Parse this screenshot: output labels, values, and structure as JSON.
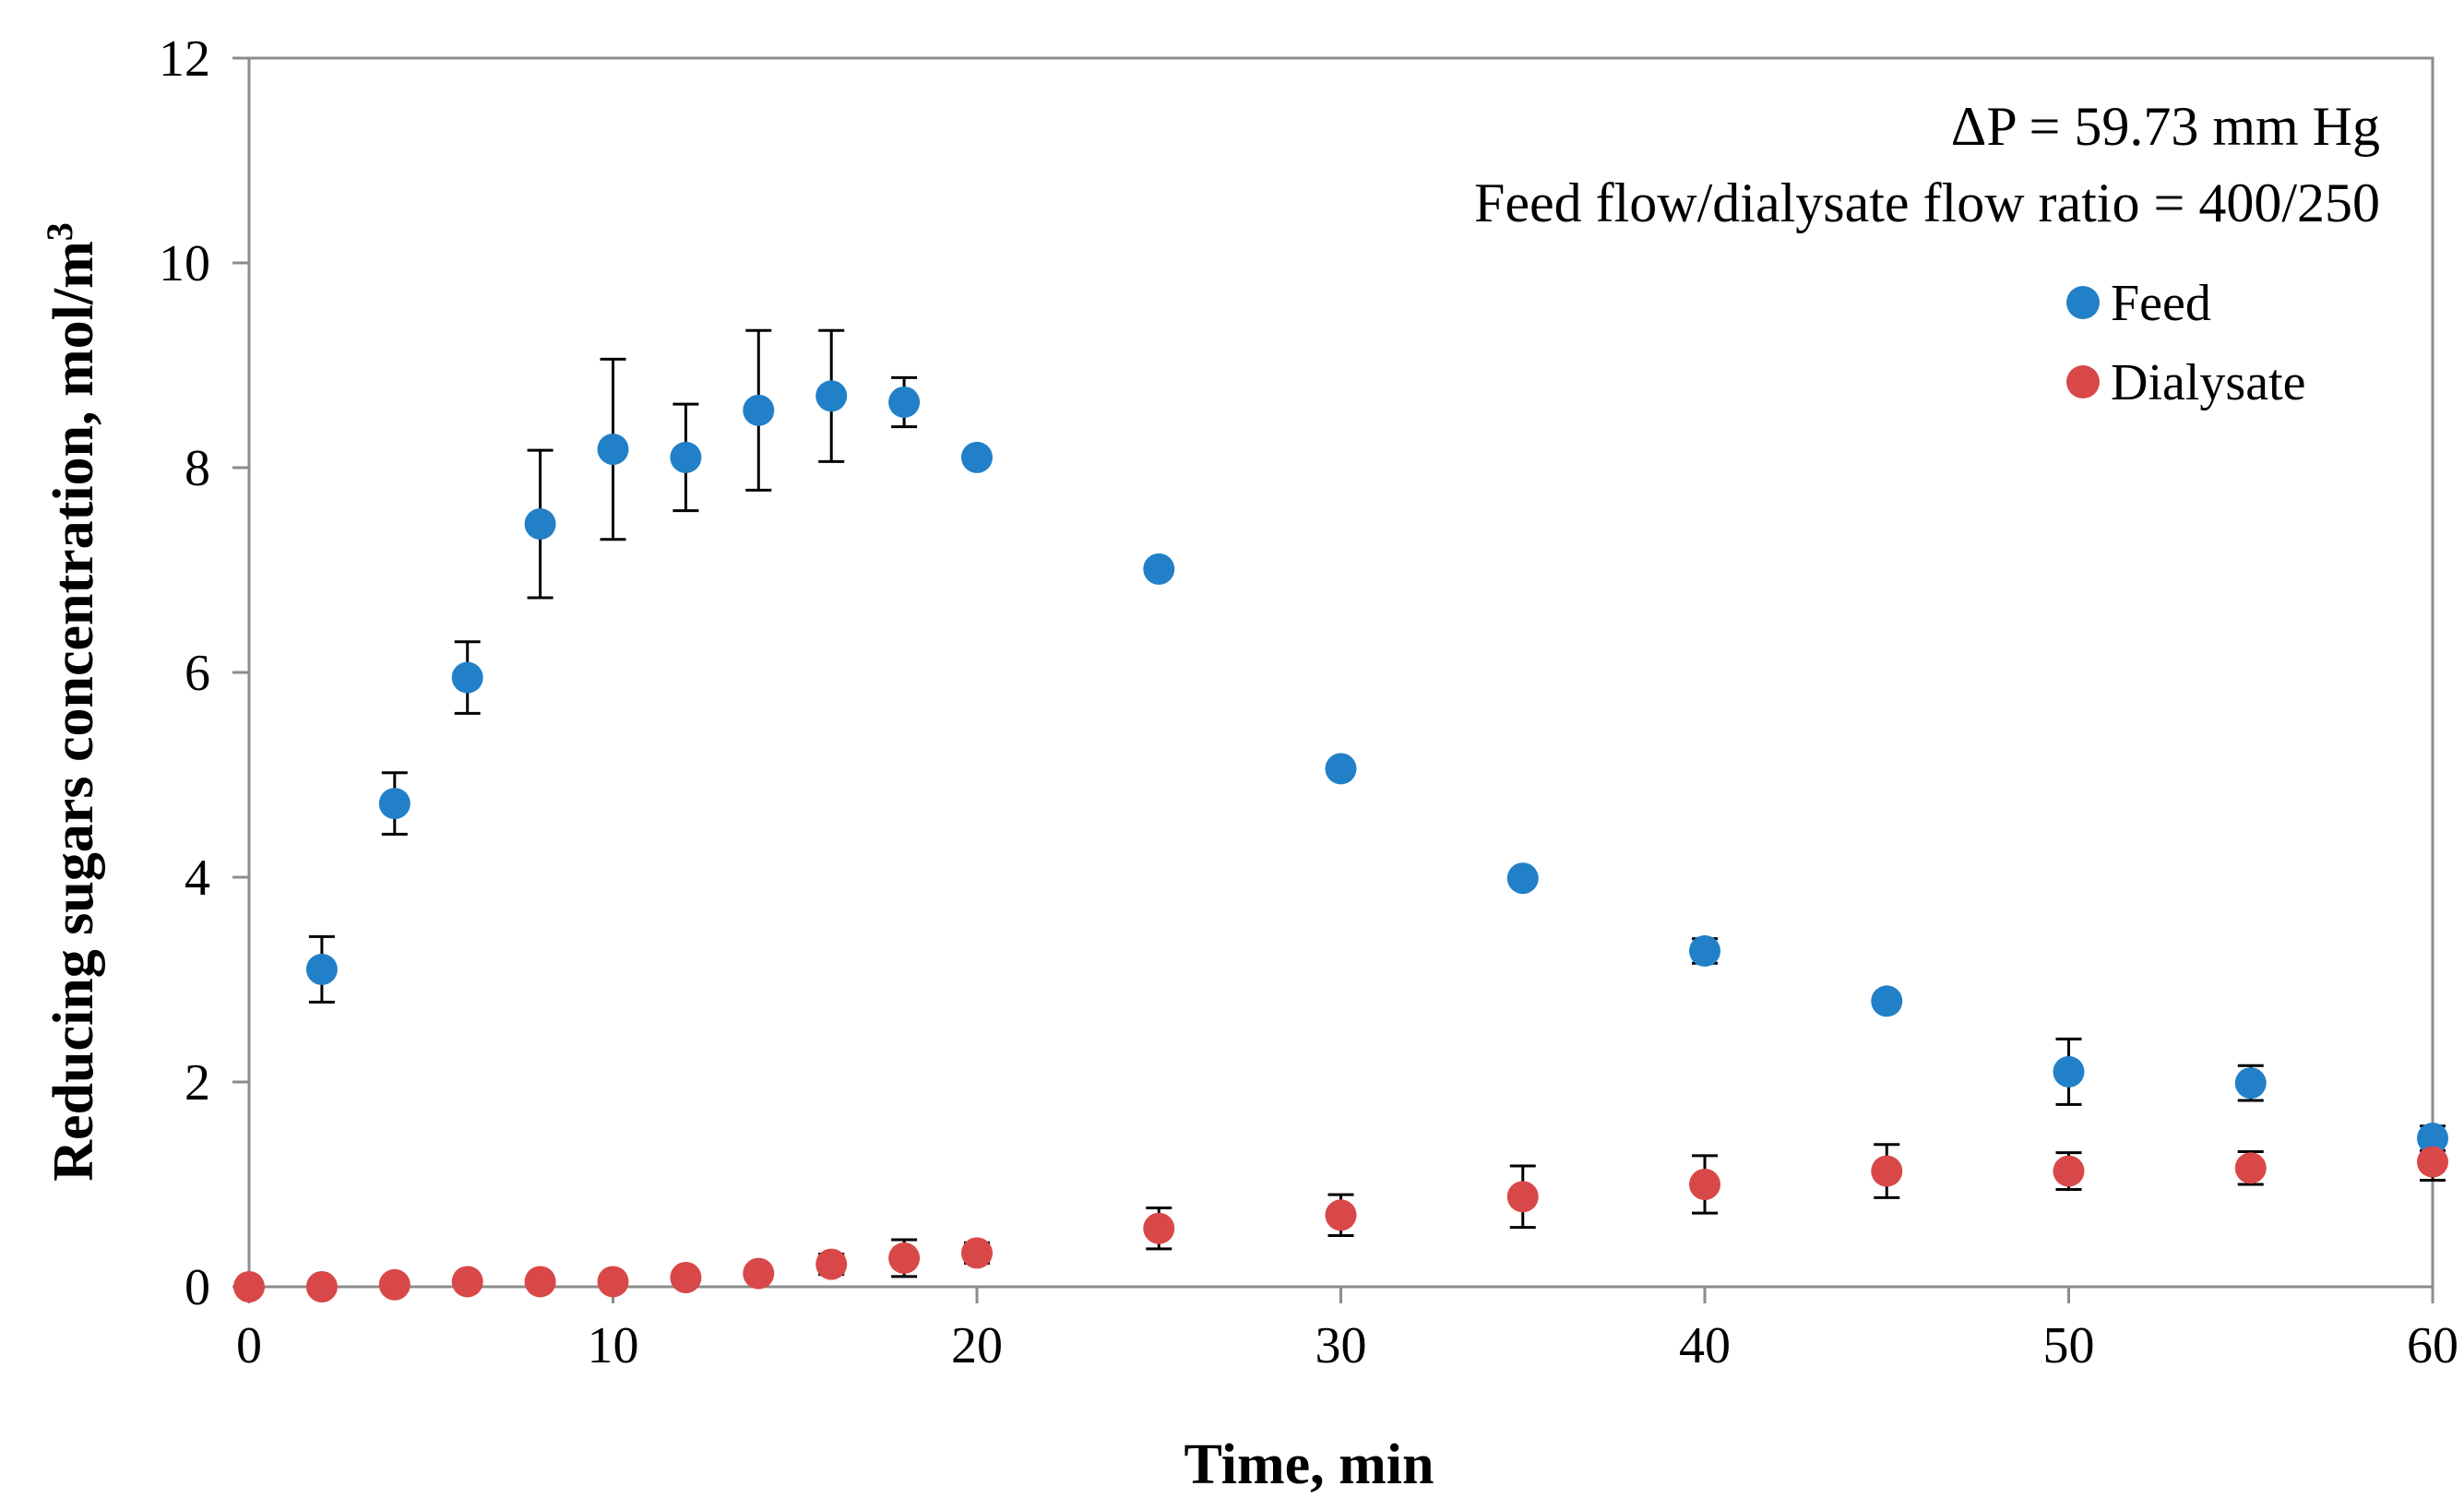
{
  "chart_data": {
    "type": "scatter",
    "xlabel": "Time, min",
    "ylabel": "Reducing sugars concentration, mol/m",
    "ylabel_superscript": "3",
    "xlim": [
      0,
      60
    ],
    "ylim": [
      0,
      12
    ],
    "xticks": [
      "0",
      "10",
      "20",
      "30",
      "40",
      "50",
      "60"
    ],
    "yticks": [
      "0",
      "2",
      "4",
      "6",
      "8",
      "10",
      "12"
    ],
    "grid": false,
    "legend_position": "top-right",
    "annotations": [
      "ΔP = 59.73  mm Hg",
      "Feed flow/dialysate  flow ratio = 400/250"
    ],
    "series": [
      {
        "name": "Feed",
        "color": "#2280C8",
        "x": [
          2,
          4,
          6,
          8,
          10,
          12,
          14,
          16,
          18,
          20,
          25,
          30,
          35,
          40,
          45,
          50,
          55,
          60
        ],
        "y": [
          3.1,
          4.72,
          5.95,
          7.45,
          8.18,
          8.1,
          8.56,
          8.7,
          8.64,
          8.1,
          7.01,
          5.06,
          3.99,
          3.28,
          2.79,
          2.1,
          1.99,
          1.45
        ],
        "err": [
          0.32,
          0.3,
          0.35,
          0.72,
          0.88,
          0.52,
          0.78,
          0.64,
          0.24,
          0,
          0,
          0,
          0,
          0.12,
          0,
          0.32,
          0.17,
          0.12
        ]
      },
      {
        "name": "Dialysate",
        "color": "#D94848",
        "x": [
          0,
          2,
          4,
          6,
          8,
          10,
          12,
          14,
          16,
          18,
          20,
          25,
          30,
          35,
          40,
          45,
          50,
          55,
          60
        ],
        "y": [
          0,
          0,
          0.02,
          0.05,
          0.05,
          0.05,
          0.09,
          0.13,
          0.22,
          0.28,
          0.33,
          0.57,
          0.7,
          0.88,
          1.0,
          1.13,
          1.13,
          1.16,
          1.22
        ],
        "err": [
          0,
          0,
          0,
          0,
          0,
          0,
          0.06,
          0.05,
          0.1,
          0.18,
          0.1,
          0.2,
          0.2,
          0.3,
          0.28,
          0.26,
          0.18,
          0.16,
          0.18
        ]
      }
    ]
  }
}
